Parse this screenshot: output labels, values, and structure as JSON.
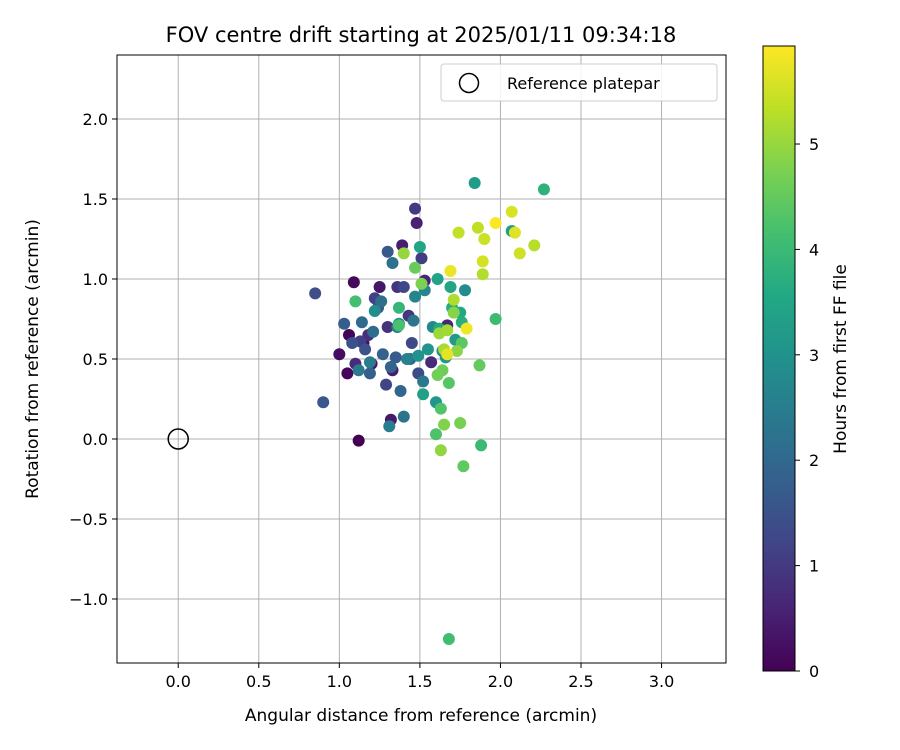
{
  "chart_data": {
    "type": "scatter",
    "title": "FOV centre drift starting at 2025/01/11 09:34:18",
    "xlabel": "Angular distance from reference (arcmin)",
    "ylabel": "Rotation from reference (arcmin)",
    "xlim": [
      -0.38,
      3.4
    ],
    "ylim": [
      -1.4,
      2.4
    ],
    "x_ticks": [
      "0.0",
      "0.5",
      "1.0",
      "1.5",
      "2.0",
      "2.5",
      "3.0"
    ],
    "y_ticks": [
      "−1.0",
      "−0.5",
      "0.0",
      "0.5",
      "1.0",
      "1.5",
      "2.0"
    ],
    "grid": true,
    "legend": {
      "position": "top-right",
      "entries": [
        "Reference platepar"
      ]
    },
    "reference_point": {
      "x": 0.0,
      "y": 0.0
    },
    "colorbar": {
      "label": "Hours from first FF file",
      "range": [
        0,
        5.93
      ],
      "ticks": [
        "0",
        "1",
        "2",
        "3",
        "4",
        "5"
      ],
      "colormap": "viridis"
    },
    "points": [
      [
        1.12,
        -0.01,
        0.0
      ],
      [
        1.06,
        0.65,
        0.05
      ],
      [
        1.05,
        0.41,
        0.1
      ],
      [
        1.09,
        0.98,
        0.15
      ],
      [
        1.0,
        0.53,
        0.2
      ],
      [
        1.15,
        0.6,
        0.25
      ],
      [
        1.2,
        0.47,
        0.3
      ],
      [
        1.25,
        0.95,
        0.35
      ],
      [
        1.32,
        0.12,
        0.4
      ],
      [
        1.33,
        0.43,
        0.45
      ],
      [
        1.39,
        1.21,
        0.5
      ],
      [
        1.48,
        1.35,
        0.55
      ],
      [
        1.53,
        0.99,
        0.6
      ],
      [
        1.67,
        0.71,
        0.65
      ],
      [
        1.57,
        0.48,
        0.7
      ],
      [
        1.1,
        0.47,
        0.75
      ],
      [
        1.18,
        0.65,
        0.8
      ],
      [
        1.3,
        0.7,
        0.85
      ],
      [
        1.36,
        0.95,
        0.9
      ],
      [
        1.43,
        0.77,
        0.95
      ],
      [
        1.47,
        1.44,
        1.0
      ],
      [
        1.51,
        1.13,
        1.05
      ],
      [
        1.13,
        0.61,
        1.1
      ],
      [
        1.22,
        0.88,
        1.15
      ],
      [
        1.29,
        0.34,
        1.2
      ],
      [
        1.4,
        0.95,
        1.25
      ],
      [
        1.45,
        0.6,
        1.3
      ],
      [
        1.49,
        0.41,
        1.35
      ],
      [
        0.85,
        0.91,
        1.4
      ],
      [
        1.08,
        0.6,
        1.45
      ],
      [
        1.16,
        0.56,
        1.5
      ],
      [
        1.24,
        0.82,
        1.55
      ],
      [
        0.9,
        0.23,
        1.6
      ],
      [
        1.3,
        1.17,
        1.65
      ],
      [
        1.35,
        0.51,
        1.7
      ],
      [
        1.03,
        0.72,
        1.75
      ],
      [
        1.19,
        0.41,
        1.8
      ],
      [
        1.27,
        0.53,
        1.85
      ],
      [
        1.32,
        0.45,
        1.9
      ],
      [
        1.38,
        0.3,
        1.95
      ],
      [
        1.44,
        0.5,
        2.0
      ],
      [
        1.14,
        0.73,
        2.05
      ],
      [
        1.21,
        0.67,
        2.1
      ],
      [
        1.26,
        0.86,
        2.15
      ],
      [
        1.33,
        1.1,
        2.2
      ],
      [
        1.4,
        0.14,
        2.25
      ],
      [
        1.46,
        0.74,
        2.3
      ],
      [
        1.52,
        0.36,
        2.35
      ],
      [
        1.12,
        0.43,
        2.4
      ],
      [
        1.19,
        0.48,
        2.45
      ],
      [
        1.31,
        0.08,
        2.5
      ],
      [
        1.36,
        0.7,
        2.55
      ],
      [
        1.42,
        0.5,
        2.6
      ],
      [
        1.47,
        0.89,
        2.65
      ],
      [
        1.53,
        0.93,
        2.7
      ],
      [
        1.58,
        0.7,
        2.75
      ],
      [
        1.64,
        0.55,
        2.8
      ],
      [
        1.78,
        0.93,
        2.85
      ],
      [
        1.22,
        0.8,
        2.9
      ],
      [
        1.37,
        0.72,
        2.95
      ],
      [
        1.49,
        0.52,
        3.0
      ],
      [
        1.55,
        0.56,
        3.05
      ],
      [
        1.6,
        0.23,
        3.1
      ],
      [
        1.66,
        0.51,
        3.15
      ],
      [
        1.72,
        0.62,
        3.2
      ],
      [
        1.84,
        1.6,
        3.25
      ],
      [
        2.07,
        1.3,
        3.3
      ],
      [
        1.52,
        0.28,
        3.35
      ],
      [
        1.61,
        1.0,
        3.4
      ],
      [
        1.69,
        0.95,
        3.45
      ],
      [
        1.5,
        1.2,
        3.5
      ],
      [
        1.75,
        0.79,
        3.55
      ],
      [
        1.62,
        0.69,
        3.6
      ],
      [
        1.7,
        0.82,
        3.65
      ],
      [
        1.76,
        0.73,
        3.7
      ],
      [
        2.27,
        1.56,
        3.8
      ],
      [
        1.37,
        0.82,
        3.9
      ],
      [
        1.88,
        -0.04,
        4.0
      ],
      [
        1.97,
        0.75,
        4.05
      ],
      [
        1.68,
        -1.25,
        4.1
      ],
      [
        1.1,
        0.86,
        4.15
      ],
      [
        1.37,
        0.71,
        4.2
      ],
      [
        1.6,
        0.03,
        4.25
      ],
      [
        1.63,
        0.19,
        4.3
      ],
      [
        1.68,
        0.35,
        4.35
      ],
      [
        1.76,
        0.6,
        4.4
      ],
      [
        1.77,
        -0.17,
        4.45
      ],
      [
        1.87,
        0.46,
        4.5
      ],
      [
        1.47,
        1.07,
        4.55
      ],
      [
        1.64,
        0.43,
        4.6
      ],
      [
        1.61,
        0.4,
        4.65
      ],
      [
        1.75,
        0.1,
        4.7
      ],
      [
        1.51,
        0.97,
        4.75
      ],
      [
        1.65,
        0.09,
        4.8
      ],
      [
        1.71,
        0.79,
        4.85
      ],
      [
        1.73,
        0.55,
        4.9
      ],
      [
        1.63,
        -0.07,
        4.95
      ],
      [
        1.4,
        1.16,
        5.0
      ],
      [
        1.62,
        0.66,
        5.05
      ],
      [
        1.67,
        0.68,
        5.1
      ],
      [
        1.65,
        0.56,
        5.15
      ],
      [
        1.71,
        0.87,
        5.2
      ],
      [
        1.89,
        1.03,
        5.25
      ],
      [
        2.21,
        1.21,
        5.3
      ],
      [
        1.86,
        1.32,
        5.35
      ],
      [
        1.74,
        1.29,
        5.4
      ],
      [
        1.9,
        1.25,
        5.45
      ],
      [
        2.12,
        1.16,
        5.5
      ],
      [
        1.89,
        1.11,
        5.55
      ],
      [
        2.07,
        1.42,
        5.6
      ],
      [
        2.09,
        1.29,
        5.65
      ],
      [
        1.67,
        0.53,
        5.7
      ],
      [
        1.69,
        1.05,
        5.75
      ],
      [
        1.79,
        0.69,
        5.82
      ],
      [
        1.97,
        1.35,
        5.9
      ]
    ]
  }
}
